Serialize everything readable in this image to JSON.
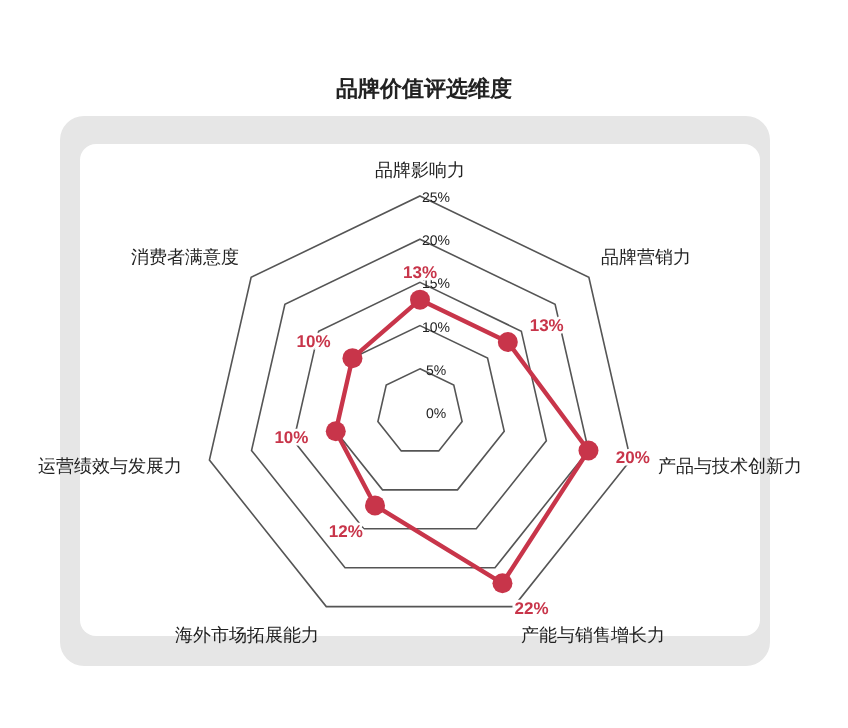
{
  "chart_data": {
    "type": "radar",
    "title": "品牌价值评选维度",
    "categories": [
      "品牌影响力",
      "品牌营销力",
      "产品与技术创新力",
      "产能与销售增长力",
      "海外市场拓展能力",
      "运营绩效与发展力",
      "消费者满意度"
    ],
    "series": [
      {
        "color": "#c8354a",
        "values": [
          13,
          13,
          20,
          22,
          12,
          10,
          10
        ],
        "value_labels": [
          "13%",
          "13%",
          "20%",
          "22%",
          "12%",
          "10%",
          "10%"
        ]
      }
    ],
    "ylim": [
      0,
      25
    ],
    "yticks": [
      {
        "value": 0,
        "label": "0%"
      },
      {
        "value": 5,
        "label": "5%"
      },
      {
        "value": 10,
        "label": "10%"
      },
      {
        "value": 15,
        "label": "15%"
      },
      {
        "value": 20,
        "label": "20%"
      },
      {
        "value": 25,
        "label": "25%"
      }
    ],
    "marker": "circle"
  }
}
